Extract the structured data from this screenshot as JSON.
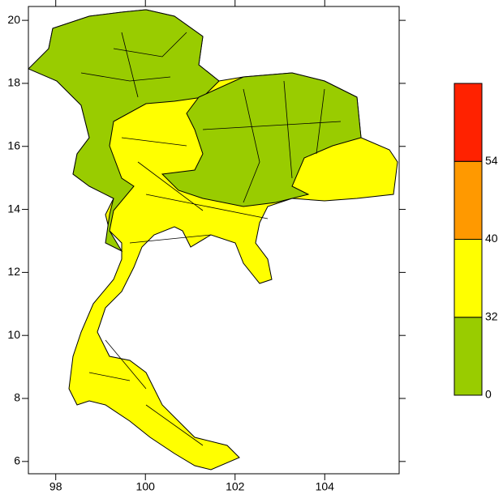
{
  "map": {
    "xlim": [
      97.39,
      105.66
    ],
    "ylim": [
      5.61,
      20.44
    ],
    "xticks": [
      98,
      100,
      102,
      104
    ],
    "yticks": [
      6,
      8,
      10,
      12,
      14,
      16,
      18,
      20
    ]
  },
  "legend": {
    "levels": [
      0,
      32,
      40,
      54
    ],
    "colors": [
      "#99cc00",
      "#ffff00",
      "#ff9900",
      "#ff2200"
    ]
  }
}
